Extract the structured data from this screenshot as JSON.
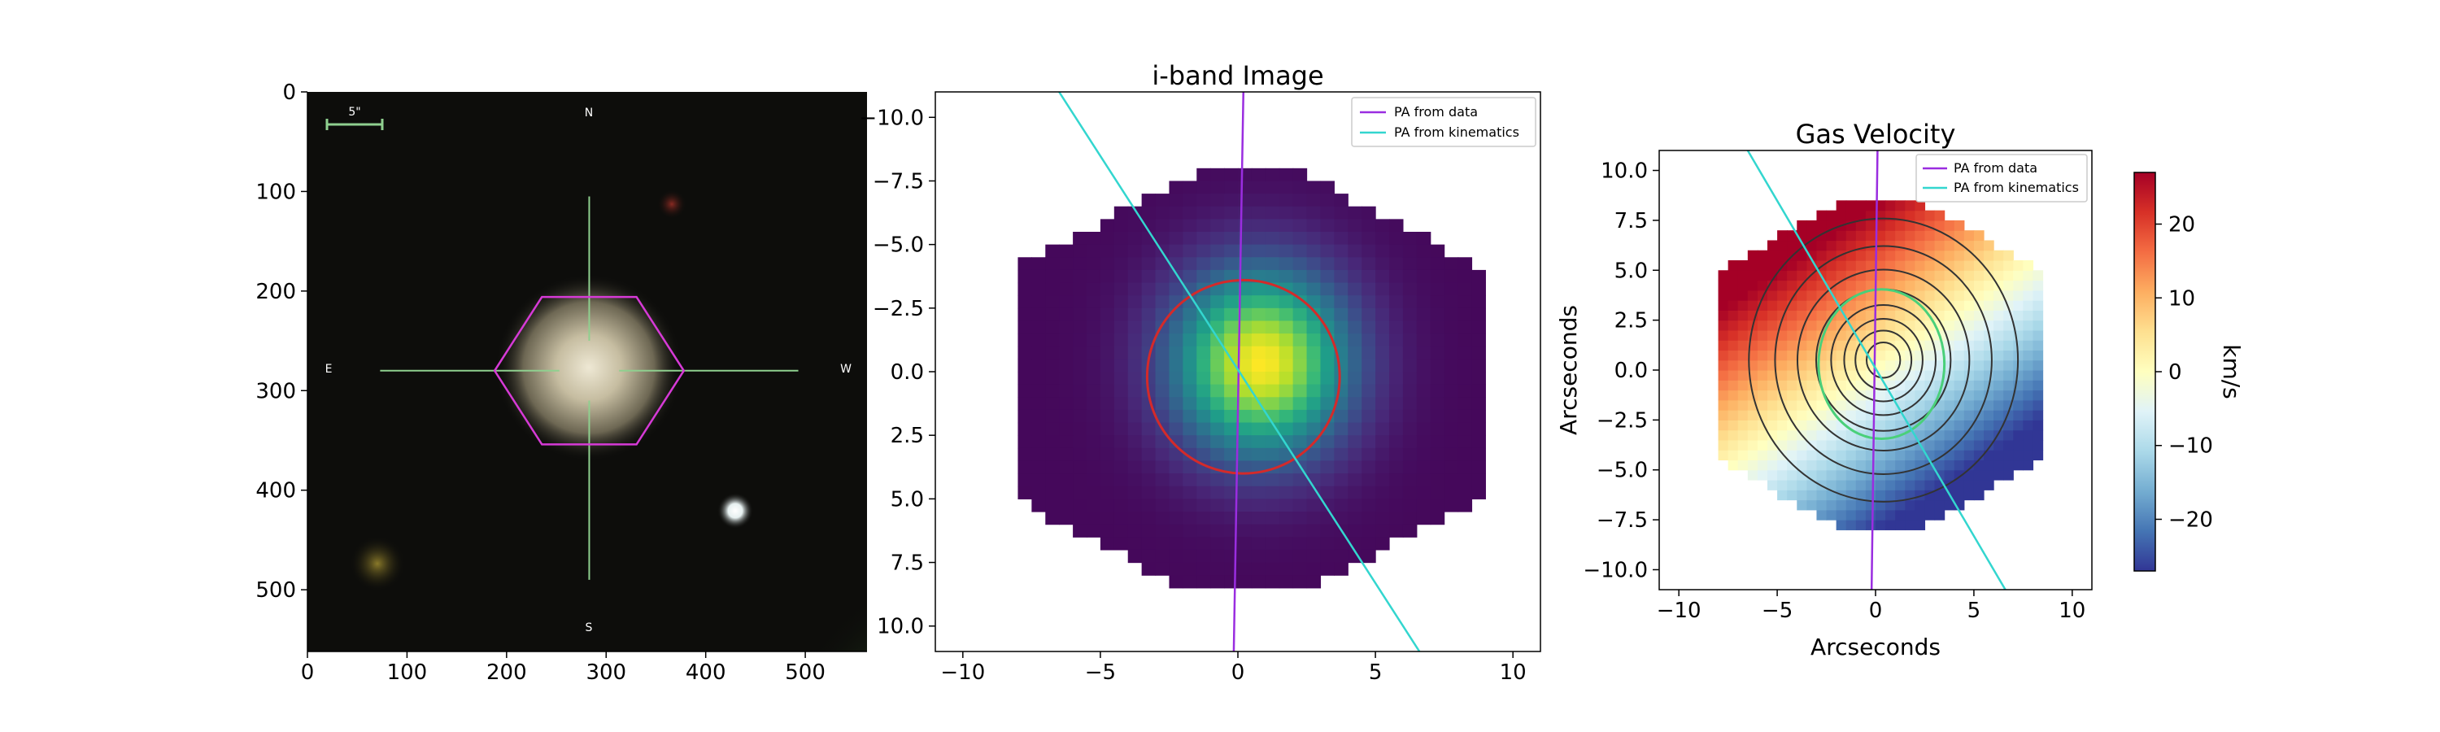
{
  "chart_data": [
    {
      "type": "image",
      "title": "",
      "description_label": "SDSS-style composite image cutout",
      "xlim": [
        0,
        562
      ],
      "ylim": [
        562,
        0
      ],
      "xticks": [
        0,
        100,
        200,
        300,
        400,
        500
      ],
      "yticks": [
        0,
        100,
        200,
        300,
        400,
        500
      ],
      "compass": {
        "n": "N",
        "s": "S",
        "e": "E",
        "w": "W"
      },
      "scale_bar_label": "5\"",
      "crosshair_center": [
        283,
        280
      ],
      "hexagon_center": [
        283,
        280
      ],
      "hexagon_radius": 95,
      "colors": {
        "background": "#0d0d0b",
        "galaxy": "#c8c0a6",
        "crosshair": "#8fd08f",
        "hexagon": "#d63ad6"
      }
    },
    {
      "type": "heatmap",
      "title": "i-band Image",
      "xlabel": "",
      "ylabel": "",
      "xlim": [
        -11,
        11
      ],
      "ylim": [
        11,
        -11
      ],
      "xticks": [
        -10,
        -5,
        0,
        5,
        10
      ],
      "yticks": [
        -10.0,
        -7.5,
        -5.0,
        -2.5,
        0.0,
        2.5,
        5.0,
        7.5,
        10.0
      ],
      "colormap": "viridis",
      "peak": [
        0.6,
        -0.6
      ],
      "ellipse": {
        "center": [
          0.2,
          0.2
        ],
        "semi_x": 3.5,
        "semi_y": 3.8,
        "color": "#d42a2a"
      },
      "lines": [
        {
          "name": "PA from data",
          "color": "#9a2de0",
          "points": [
            [
              0.2,
              -11
            ],
            [
              -0.15,
              11
            ]
          ]
        },
        {
          "name": "PA from kinematics",
          "color": "#33d6cf",
          "points": [
            [
              -6.5,
              -11
            ],
            [
              6.6,
              11
            ]
          ]
        }
      ],
      "legend": {
        "position": "top-right",
        "entries": [
          "PA from data",
          "PA from kinematics"
        ]
      }
    },
    {
      "type": "heatmap",
      "title": "Gas Velocity",
      "xlabel": "Arcseconds",
      "ylabel": "Arcseconds",
      "xlim": [
        -11,
        11
      ],
      "ylim": [
        11,
        -11
      ],
      "xticks": [
        -10,
        -5,
        0,
        5,
        10
      ],
      "yticks": [
        10.0,
        7.5,
        5.0,
        2.5,
        0.0,
        -2.5,
        -5.0,
        -7.5,
        -10.0
      ],
      "colormap": "RdYlBu_r",
      "lines": [
        {
          "name": "PA from data",
          "color": "#9a2de0",
          "points": [
            [
              0.1,
              11
            ],
            [
              -0.2,
              -11
            ]
          ]
        },
        {
          "name": "PA from kinematics",
          "color": "#33d6cf",
          "points": [
            [
              -6.5,
              11
            ],
            [
              6.6,
              -11
            ]
          ]
        }
      ],
      "kinematic_ellipse": {
        "center": [
          0.3,
          0.3
        ],
        "semi_x": 3.2,
        "semi_y": 3.8,
        "color": "#4ad07a"
      },
      "legend": {
        "position": "top-right",
        "entries": [
          "PA from data",
          "PA from kinematics"
        ]
      },
      "colorbar": {
        "label": "km/s",
        "min": -27,
        "max": 27,
        "ticks": [
          20,
          10,
          0,
          -10,
          -20
        ]
      }
    }
  ]
}
